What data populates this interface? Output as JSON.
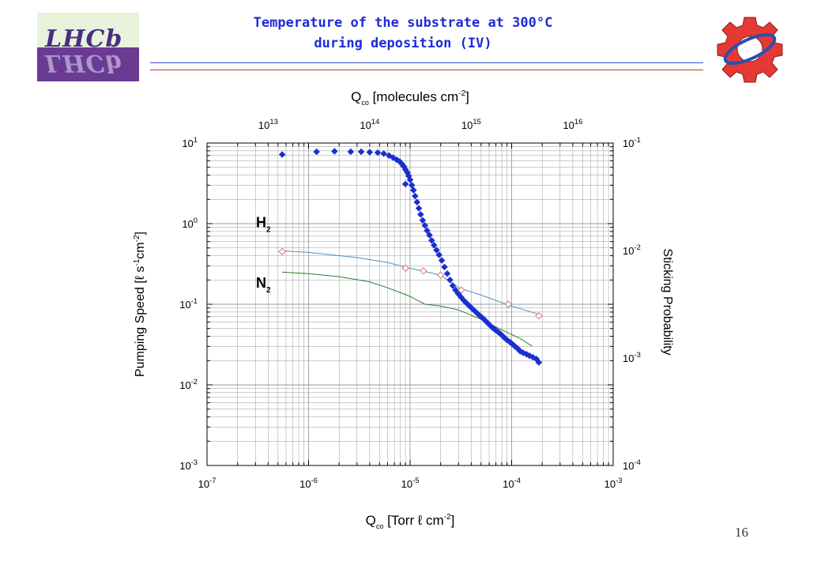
{
  "slide": {
    "title_line1": "Temperature of the substrate at 300°C",
    "title_line2": "during deposition  (IV)",
    "logo_text": "LHCb",
    "page_number": "16"
  },
  "colors": {
    "title": "#1f2bd6",
    "series_main": "#1a2fd0",
    "h2_line": "#4d8fc0",
    "h2_marker": "#d07a8a",
    "n2_line": "#2e7d32",
    "gear": "#e53935"
  },
  "chart_data": {
    "type": "scatter",
    "xscale": "log",
    "yscale": "log",
    "xlim": [
      1e-07,
      0.001
    ],
    "ylim": [
      0.001,
      10
    ],
    "right_ylim": [
      0.0001,
      0.1
    ],
    "grid": true,
    "xlabel": "Q",
    "xlabel_sub": "co",
    "xlabel_rest": "[Torr ℓ cm",
    "xlabel_sup": "-2",
    "xlabel_end": "]",
    "ylabel": "Pumping Speed [ℓ s",
    "ylabel_sup1": "-1",
    "ylabel_mid": "cm",
    "ylabel_sup2": "-2",
    "ylabel_end": "]",
    "right_ylabel": "Sticking Probability",
    "top_xlabel": "Q",
    "top_xlabel_sub": "co",
    "top_xlabel_rest": "[molecules cm",
    "top_xlabel_sup": "-2",
    "top_xlabel_end": "]",
    "x_ticks": [
      {
        "value": 1e-07,
        "base": "10",
        "exp": "-7"
      },
      {
        "value": 1e-06,
        "base": "10",
        "exp": "-6"
      },
      {
        "value": 1e-05,
        "base": "10",
        "exp": "-5"
      },
      {
        "value": 0.0001,
        "base": "10",
        "exp": "-4"
      },
      {
        "value": 0.001,
        "base": "10",
        "exp": "-3"
      }
    ],
    "y_ticks": [
      {
        "value": 10,
        "base": "10",
        "exp": "1"
      },
      {
        "value": 1,
        "base": "10",
        "exp": "0"
      },
      {
        "value": 0.1,
        "base": "10",
        "exp": "-1"
      },
      {
        "value": 0.01,
        "base": "10",
        "exp": "-2"
      },
      {
        "value": 0.001,
        "base": "10",
        "exp": "-3"
      }
    ],
    "right_y_ticks": [
      {
        "value": 0.1,
        "base": "10",
        "exp": "-1"
      },
      {
        "value": 0.01,
        "base": "10",
        "exp": "-2"
      },
      {
        "value": 0.001,
        "base": "10",
        "exp": "-3"
      },
      {
        "value": 0.0001,
        "base": "10",
        "exp": "-4"
      }
    ],
    "top_x_ticks": [
      {
        "value": 10000000000000.0,
        "x_equiv": 4e-07,
        "base": "10",
        "exp": "13"
      },
      {
        "value": 100000000000000.0,
        "x_equiv": 4e-06,
        "base": "10",
        "exp": "14"
      },
      {
        "value": 1000000000000000.0,
        "x_equiv": 4e-05,
        "base": "10",
        "exp": "15"
      },
      {
        "value": 1e+16,
        "x_equiv": 0.0004,
        "base": "10",
        "exp": "16"
      }
    ],
    "annotations": [
      {
        "text": "H",
        "sub": "2",
        "x": 4.5e-07,
        "y": 0.9
      },
      {
        "text": "N",
        "sub": "2",
        "x": 4.5e-07,
        "y": 0.16
      }
    ],
    "series": [
      {
        "marker": "diamond-filled",
        "x": [
          5.5e-07,
          1.2e-06,
          1.8e-06,
          2.6e-06,
          3.3e-06,
          4e-06,
          4.8e-06,
          5.5e-06,
          6.2e-06,
          6.8e-06,
          7.4e-06,
          7.9e-06,
          8.3e-06,
          8.7e-06,
          9e-06,
          9.4e-06,
          9.7e-06,
          1e-05,
          1.04e-05,
          1.08e-05,
          1.12e-05,
          1.17e-05,
          1.22e-05,
          1.27e-05,
          1.33e-05,
          1.4e-05,
          1.47e-05,
          1.55e-05,
          1.63e-05,
          1.72e-05,
          1.82e-05,
          1.93e-05,
          2.05e-05,
          2.18e-05,
          2.32e-05,
          2.47e-05,
          2.63e-05,
          2.8e-05,
          2.98e-05,
          3.17e-05,
          3.37e-05,
          3.6e-05,
          3.85e-05,
          4.1e-05,
          4.4e-05,
          4.7e-05,
          5e-05,
          5.35e-05,
          5.7e-05,
          6.1e-05,
          6.5e-05,
          6.9e-05,
          7.4e-05,
          7.9e-05,
          8.4e-05,
          9e-05,
          9.6e-05,
          0.000102,
          0.000108,
          0.000115,
          0.000122,
          0.00013,
          0.00014,
          0.00015,
          0.000162,
          0.000175,
          0.000185,
          9e-06
        ],
        "y": [
          7.2,
          7.8,
          7.9,
          7.8,
          7.8,
          7.7,
          7.6,
          7.4,
          7.0,
          6.6,
          6.2,
          5.9,
          5.5,
          5.1,
          4.7,
          4.3,
          3.9,
          3.5,
          3.0,
          2.6,
          2.2,
          1.85,
          1.55,
          1.3,
          1.1,
          0.95,
          0.82,
          0.72,
          0.62,
          0.54,
          0.47,
          0.41,
          0.35,
          0.29,
          0.24,
          0.2,
          0.17,
          0.15,
          0.135,
          0.123,
          0.112,
          0.103,
          0.095,
          0.088,
          0.081,
          0.075,
          0.07,
          0.065,
          0.06,
          0.055,
          0.051,
          0.048,
          0.045,
          0.042,
          0.039,
          0.036,
          0.034,
          0.032,
          0.03,
          0.028,
          0.026,
          0.025,
          0.024,
          0.023,
          0.022,
          0.021,
          0.019,
          3.1
        ]
      },
      {
        "name": "H2",
        "marker": "diamond-open",
        "x": [
          5.5e-07,
          9e-06,
          1.35e-05,
          2e-05,
          3.2e-05,
          9.3e-05,
          0.000185
        ],
        "y": [
          0.45,
          0.28,
          0.26,
          0.23,
          0.15,
          0.1,
          0.072
        ]
      },
      {
        "name": "H2-fit",
        "line": true,
        "x": [
          5.5e-07,
          1e-06,
          3e-06,
          6e-06,
          1e-05,
          2e-05,
          3e-05,
          5e-05,
          0.0001,
          0.000185
        ],
        "y": [
          0.46,
          0.44,
          0.38,
          0.33,
          0.28,
          0.23,
          0.16,
          0.13,
          0.095,
          0.075
        ]
      },
      {
        "name": "N2",
        "line": true,
        "x": [
          5.5e-07,
          1e-06,
          2e-06,
          4e-06,
          6e-06,
          8e-06,
          1e-05,
          1.4e-05,
          2e-05,
          3e-05,
          5e-05,
          8e-05,
          0.00012,
          0.00016
        ],
        "y": [
          0.25,
          0.24,
          0.22,
          0.19,
          0.16,
          0.14,
          0.125,
          0.1,
          0.095,
          0.085,
          0.065,
          0.048,
          0.038,
          0.03
        ]
      }
    ]
  }
}
